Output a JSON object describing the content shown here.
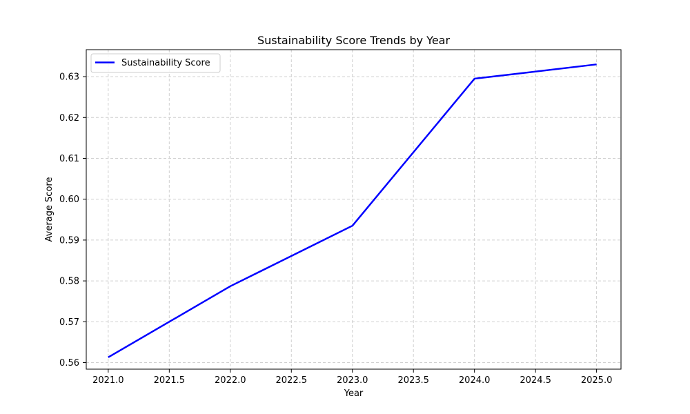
{
  "chart_data": {
    "type": "line",
    "title": "Sustainability Score Trends by Year",
    "xlabel": "Year",
    "ylabel": "Average Score",
    "x": [
      2021.0,
      2022.0,
      2023.0,
      2024.0,
      2025.0
    ],
    "series": [
      {
        "name": "Sustainability Score",
        "values": [
          0.5613,
          0.5787,
          0.5935,
          0.6295,
          0.633
        ],
        "color": "#0000ff"
      }
    ],
    "xlim": [
      2020.82,
      2025.2
    ],
    "ylim": [
      0.5584,
      0.6366
    ],
    "x_ticks": [
      "2021.0",
      "2021.5",
      "2022.0",
      "2022.5",
      "2023.0",
      "2023.5",
      "2024.0",
      "2024.5",
      "2025.0"
    ],
    "y_ticks": [
      "0.56",
      "0.57",
      "0.58",
      "0.59",
      "0.60",
      "0.61",
      "0.62",
      "0.63"
    ],
    "grid": true,
    "grid_style": "dashed",
    "legend_position": "top-left"
  }
}
